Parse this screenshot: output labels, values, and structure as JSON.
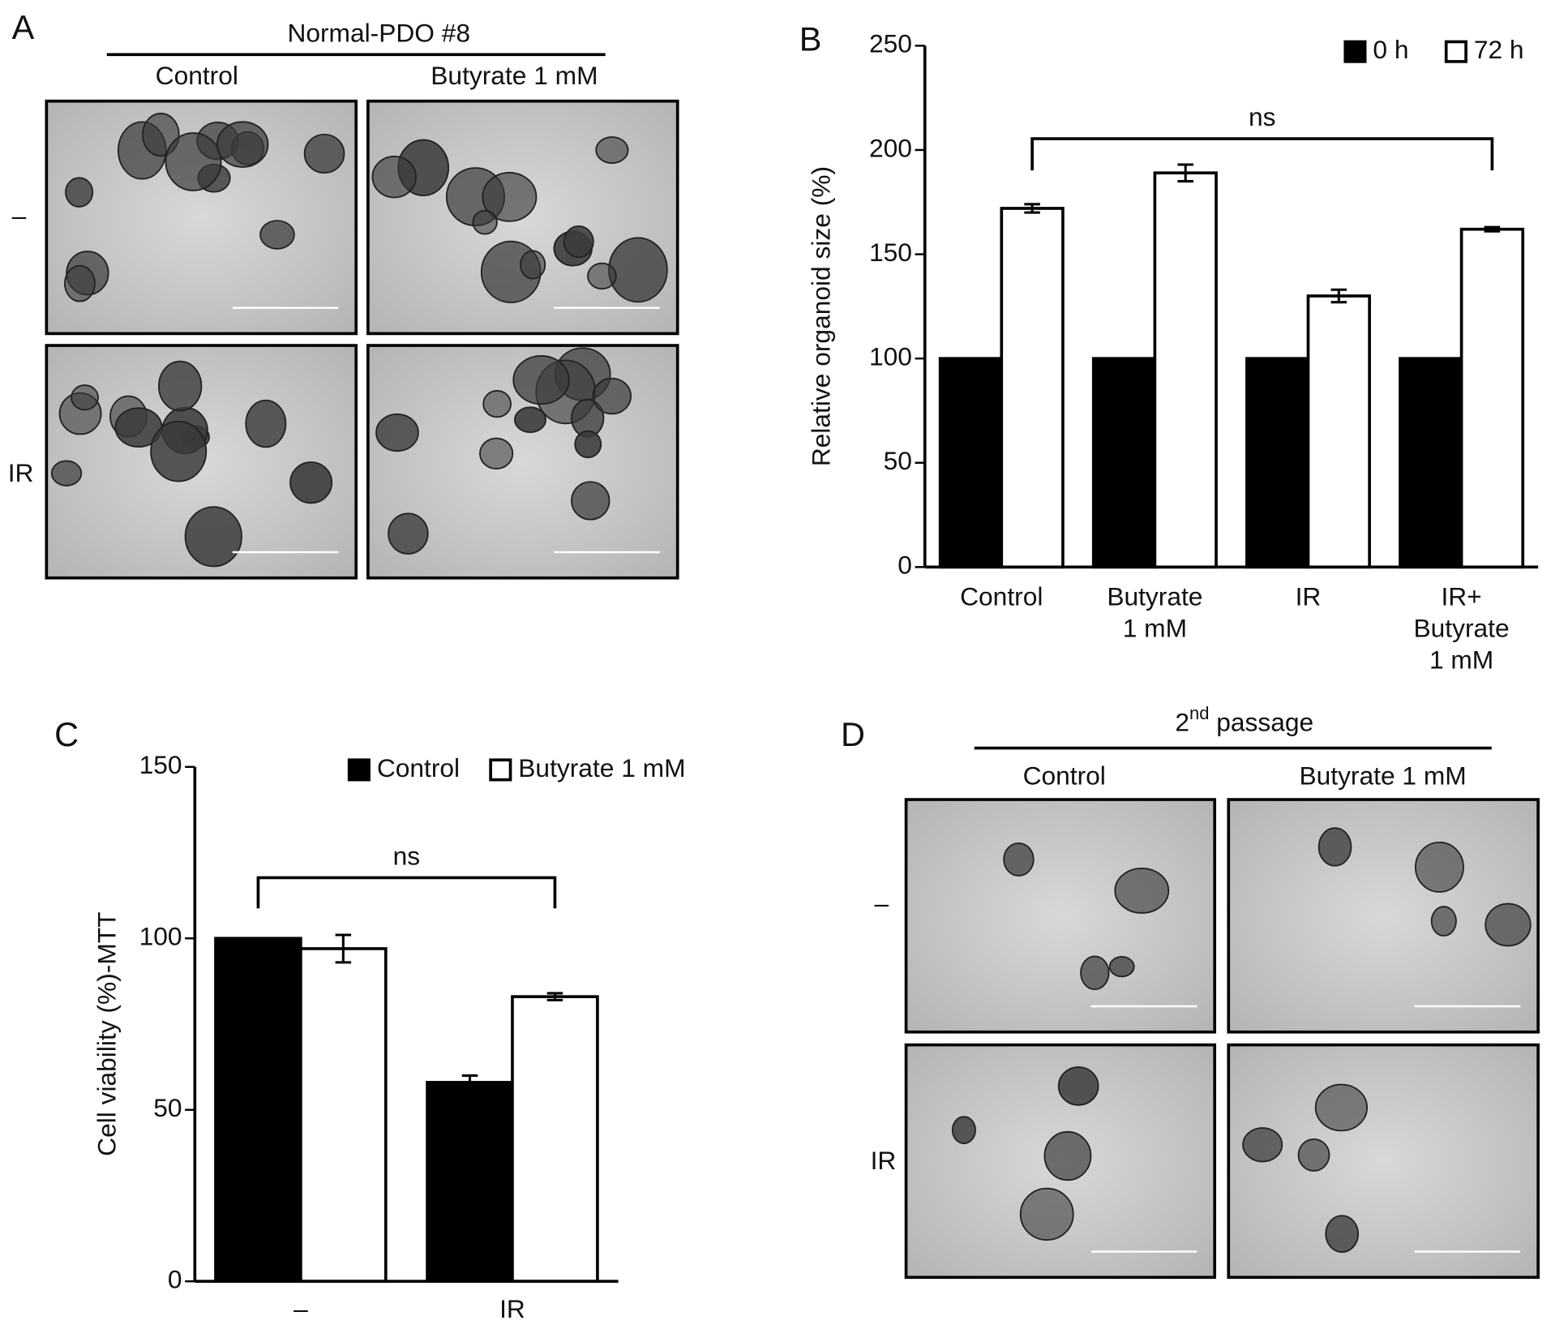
{
  "panels": {
    "A": {
      "label": "A",
      "title": "Normal-PDO #8",
      "columns": [
        "Control",
        "Butyrate 1 mM"
      ],
      "rows": [
        "–",
        "IR"
      ]
    },
    "D": {
      "label": "D",
      "title": [
        "2",
        "nd",
        " passage"
      ],
      "columns": [
        "Control",
        "Butyrate 1 mM"
      ],
      "rows": [
        "–",
        "IR"
      ]
    }
  },
  "chart_data": [
    {
      "type": "bar",
      "label": "B",
      "ylabel": "Relative organoid size (%)",
      "annotation": "ns",
      "categories": [
        [
          "Control"
        ],
        [
          "Butyrate",
          "1 mM"
        ],
        [
          "IR"
        ],
        [
          "IR+",
          "Butyrate",
          "1 mM"
        ]
      ],
      "series": [
        {
          "name": "0 h",
          "color": "#000000",
          "values": [
            100,
            100,
            100,
            100
          ],
          "errors": [
            0,
            0,
            0,
            0
          ]
        },
        {
          "name": "72 h",
          "color": "#ffffff",
          "values": [
            172,
            189,
            130,
            162
          ],
          "errors": [
            2,
            4,
            3,
            1
          ]
        }
      ],
      "ylim": [
        0,
        250
      ],
      "yticks": [
        0,
        50,
        100,
        150,
        200,
        250
      ],
      "legend": "top right"
    },
    {
      "type": "bar",
      "label": "C",
      "ylabel": "Cell viability (%)-MTT",
      "annotation": "ns",
      "categories": [
        [
          "–"
        ],
        [
          "IR"
        ]
      ],
      "series": [
        {
          "name": "Control",
          "color": "#000000",
          "values": [
            100,
            58
          ],
          "errors": [
            0,
            2
          ]
        },
        {
          "name": "Butyrate 1 mM",
          "color": "#ffffff",
          "values": [
            97,
            83
          ],
          "errors": [
            4,
            1
          ]
        }
      ],
      "ylim": [
        0,
        150
      ],
      "yticks": [
        0,
        50,
        100,
        150
      ],
      "legend": "top"
    }
  ]
}
